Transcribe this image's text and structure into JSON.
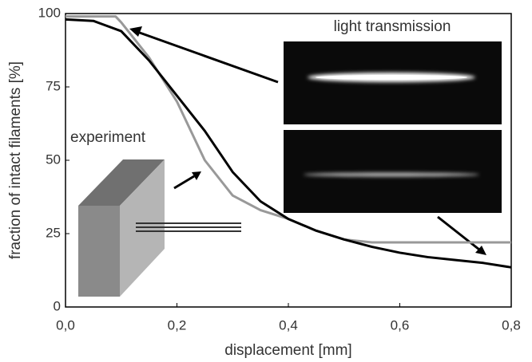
{
  "chart_data": {
    "type": "line",
    "xlabel": "displacement [mm]",
    "ylabel": "fraction of intact filaments [%]",
    "annotations": [
      "experiment",
      "light transmission"
    ],
    "xlim": [
      0,
      0.8
    ],
    "xticks": [
      {
        "value": 0,
        "label": "0,0"
      },
      {
        "value": 0.2,
        "label": "0,2"
      },
      {
        "value": 0.4,
        "label": "0,4"
      },
      {
        "value": 0.6,
        "label": "0,6"
      },
      {
        "value": 0.8,
        "label": "0,8"
      }
    ],
    "ylim": [
      0,
      100
    ],
    "yticks": [
      0,
      25,
      50,
      75,
      100
    ],
    "series": [
      {
        "color": "#000000",
        "x": [
          0,
          0.05,
          0.1,
          0.15,
          0.2,
          0.25,
          0.3,
          0.35,
          0.4,
          0.45,
          0.5,
          0.55,
          0.6,
          0.65,
          0.7,
          0.75,
          0.8
        ],
        "values": [
          98,
          97.5,
          94,
          84,
          72,
          60,
          46,
          36,
          30,
          26,
          23,
          20.5,
          18.5,
          17,
          16,
          15,
          13.5
        ]
      },
      {
        "color": "#999999",
        "x": [
          0,
          0.05,
          0.09,
          0.1,
          0.15,
          0.2,
          0.25,
          0.3,
          0.35,
          0.4,
          0.45,
          0.5,
          0.55,
          0.8
        ],
        "values": [
          99,
          99,
          99,
          97,
          85,
          70,
          50,
          38,
          33,
          30,
          26,
          23,
          22,
          22
        ]
      }
    ]
  }
}
